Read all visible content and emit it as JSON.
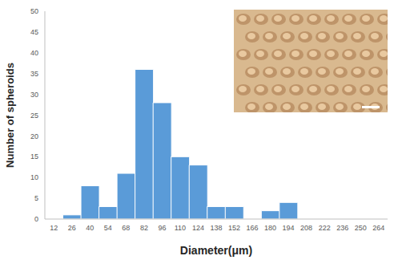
{
  "chart_data": {
    "type": "bar",
    "x_label": "Diameter(μm)",
    "y_label": "Number of spheroids",
    "categories": [
      "12",
      "26",
      "40",
      "54",
      "68",
      "82",
      "96",
      "110",
      "124",
      "138",
      "152",
      "166",
      "180",
      "194",
      "208",
      "222",
      "236",
      "250",
      "264"
    ],
    "values": [
      0,
      1,
      8,
      3,
      11,
      36,
      28,
      15,
      13,
      3,
      3,
      0,
      2,
      4,
      0,
      0,
      0,
      0,
      0
    ],
    "color": "#5a9bd8",
    "ylim": [
      0,
      50
    ],
    "yticks": [
      0,
      5,
      10,
      15,
      20,
      25,
      30,
      35,
      40,
      45,
      50
    ],
    "grid": false
  }
}
